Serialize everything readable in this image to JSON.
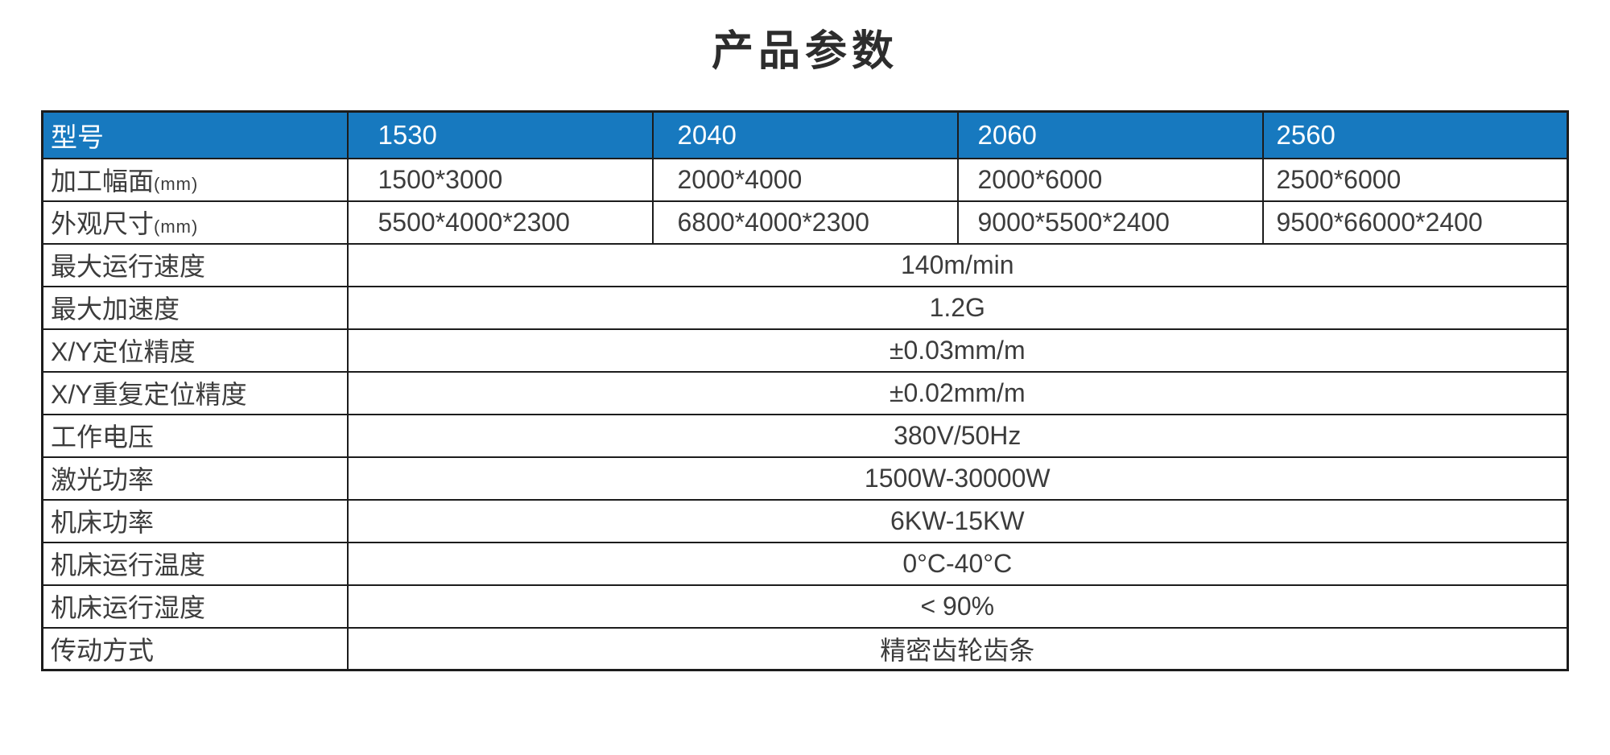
{
  "page": {
    "title": "产品参数"
  },
  "table": {
    "header": {
      "label": "型号",
      "models": [
        "1530",
        "2040",
        "2060",
        "2560"
      ]
    },
    "size_rows": [
      {
        "label": "加工幅面",
        "unit": "(mm)",
        "values": [
          "1500*3000",
          "2000*4000",
          "2000*6000",
          "2500*6000"
        ]
      },
      {
        "label": "外观尺寸",
        "unit": "(mm)",
        "values": [
          "5500*4000*2300",
          "6800*4000*2300",
          "9000*5500*2400",
          "9500*66000*2400"
        ]
      }
    ],
    "shared_rows": [
      {
        "label": "最大运行速度",
        "value": "140m/min"
      },
      {
        "label": "最大加速度",
        "value": "1.2G"
      },
      {
        "label": "X/Y定位精度",
        "value": "±0.03mm/m"
      },
      {
        "label": "X/Y重复定位精度",
        "value": "±0.02mm/m"
      },
      {
        "label": "工作电压",
        "value": "380V/50Hz"
      },
      {
        "label": "激光功率",
        "value": "1500W-30000W"
      },
      {
        "label": "机床功率",
        "value": "6KW-15KW"
      },
      {
        "label": "机床运行温度",
        "value": "0°C-40°C"
      },
      {
        "label": "机床运行湿度",
        "value": "< 90%"
      },
      {
        "label": "传动方式",
        "value": "精密齿轮齿条"
      }
    ],
    "colors": {
      "header_bg": "#1779bf",
      "header_text": "#ffffff",
      "body_text": "#3c3c3c",
      "border": "#1c1c1c"
    }
  }
}
